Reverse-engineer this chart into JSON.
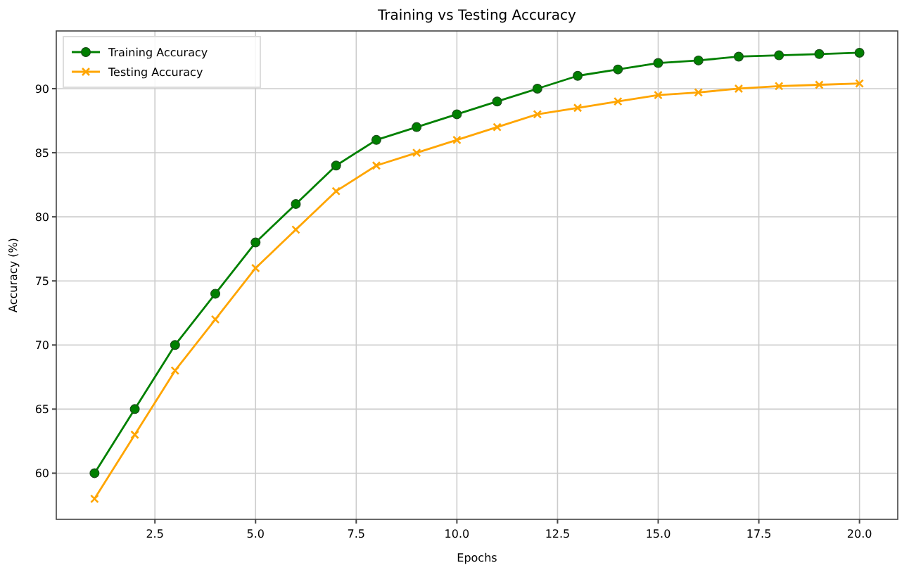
{
  "chart_data": {
    "type": "line",
    "title": "Training vs Testing Accuracy",
    "xlabel": "Epochs",
    "ylabel": "Accuracy (%)",
    "x": [
      1,
      2,
      3,
      4,
      5,
      6,
      7,
      8,
      9,
      10,
      11,
      12,
      13,
      14,
      15,
      16,
      17,
      18,
      19,
      20
    ],
    "series": [
      {
        "name": "Training Accuracy",
        "color": "#008000",
        "marker": "circle",
        "values": [
          60,
          65,
          70,
          74,
          78,
          81,
          84,
          86,
          87,
          88,
          89,
          90,
          91,
          91.5,
          92,
          92.2,
          92.5,
          92.6,
          92.7,
          92.8
        ]
      },
      {
        "name": "Testing Accuracy",
        "color": "#ffa500",
        "marker": "cross",
        "values": [
          58,
          63,
          68,
          72,
          76,
          79,
          82,
          84,
          85,
          86,
          87,
          88,
          88.5,
          89,
          89.5,
          89.7,
          90,
          90.2,
          90.3,
          90.4
        ]
      }
    ],
    "xlim": [
      0.05,
      20.95
    ],
    "xticks": [
      {
        "value": 2.5,
        "label": "2.5"
      },
      {
        "value": 5,
        "label": "5.0"
      },
      {
        "value": 7.5,
        "label": "7.5"
      },
      {
        "value": 10,
        "label": "10.0"
      },
      {
        "value": 12.5,
        "label": "12.5"
      },
      {
        "value": 15,
        "label": "15.0"
      },
      {
        "value": 17.5,
        "label": "17.5"
      },
      {
        "value": 20,
        "label": "20.0"
      }
    ],
    "ylim": [
      56.4,
      94.5
    ],
    "yticks": [
      60,
      65,
      70,
      75,
      80,
      85,
      90
    ],
    "grid": true,
    "legend": "top left",
    "line_style": "solid"
  }
}
